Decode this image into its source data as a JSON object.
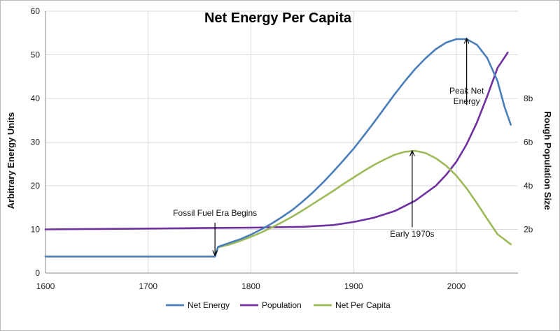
{
  "colors": {
    "net_energy": "#4a7ebb",
    "population": "#7030a0",
    "net_per_capita": "#9bbb59",
    "grid": "#d9d9d9",
    "axis": "#888888"
  },
  "chart_data": {
    "type": "line",
    "title": "Net Energy Per Capita",
    "xlabel": "",
    "ylabel": "Arbitrary Energy Units",
    "y2label": "Rough Population Size",
    "xlim": [
      1600,
      2060
    ],
    "ylim": [
      0,
      60
    ],
    "grid": true,
    "legend_position": "bottom",
    "x_ticks": [
      1600,
      1700,
      1800,
      1900,
      2000
    ],
    "y_ticks": [
      0,
      10,
      20,
      30,
      40,
      50,
      60
    ],
    "y2_ticks": [
      {
        "value": 10,
        "label": "2b"
      },
      {
        "value": 20,
        "label": "4b"
      },
      {
        "value": 30,
        "label": "6b"
      },
      {
        "value": 40,
        "label": "8b"
      }
    ],
    "series": [
      {
        "name": "Net Energy",
        "color": "#4a7ebb",
        "points": [
          [
            1600,
            3.8
          ],
          [
            1650,
            3.8
          ],
          [
            1700,
            3.8
          ],
          [
            1765,
            3.8
          ],
          [
            1768,
            6.0
          ],
          [
            1780,
            7.0
          ],
          [
            1790,
            7.8
          ],
          [
            1800,
            8.8
          ],
          [
            1810,
            10.0
          ],
          [
            1820,
            11.3
          ],
          [
            1830,
            12.8
          ],
          [
            1840,
            14.4
          ],
          [
            1850,
            16.3
          ],
          [
            1860,
            18.4
          ],
          [
            1870,
            20.7
          ],
          [
            1880,
            23.2
          ],
          [
            1890,
            25.8
          ],
          [
            1900,
            28.5
          ],
          [
            1910,
            31.5
          ],
          [
            1920,
            34.6
          ],
          [
            1930,
            37.8
          ],
          [
            1940,
            41.0
          ],
          [
            1950,
            44.0
          ],
          [
            1960,
            46.8
          ],
          [
            1970,
            49.2
          ],
          [
            1980,
            51.3
          ],
          [
            1990,
            52.8
          ],
          [
            2000,
            53.6
          ],
          [
            2010,
            53.6
          ],
          [
            2020,
            52.3
          ],
          [
            2030,
            49.3
          ],
          [
            2040,
            44.0
          ],
          [
            2047,
            38.0
          ],
          [
            2053,
            34.0
          ]
        ]
      },
      {
        "name": "Population",
        "color": "#7030a0",
        "points": [
          [
            1600,
            10.0
          ],
          [
            1650,
            10.1
          ],
          [
            1700,
            10.2
          ],
          [
            1750,
            10.3
          ],
          [
            1800,
            10.4
          ],
          [
            1850,
            10.6
          ],
          [
            1880,
            11.0
          ],
          [
            1900,
            11.7
          ],
          [
            1920,
            12.7
          ],
          [
            1940,
            14.2
          ],
          [
            1960,
            16.6
          ],
          [
            1980,
            20.0
          ],
          [
            1990,
            22.5
          ],
          [
            2000,
            25.5
          ],
          [
            2010,
            29.5
          ],
          [
            2020,
            34.5
          ],
          [
            2030,
            40.5
          ],
          [
            2040,
            47.0
          ],
          [
            2050,
            50.5
          ]
        ]
      },
      {
        "name": "Net Per Capita",
        "color": "#9bbb59",
        "points": [
          [
            1600,
            3.8
          ],
          [
            1650,
            3.8
          ],
          [
            1700,
            3.8
          ],
          [
            1765,
            3.8
          ],
          [
            1768,
            5.9
          ],
          [
            1780,
            6.6
          ],
          [
            1790,
            7.4
          ],
          [
            1800,
            8.3
          ],
          [
            1810,
            9.3
          ],
          [
            1820,
            10.4
          ],
          [
            1830,
            11.6
          ],
          [
            1840,
            12.9
          ],
          [
            1850,
            14.3
          ],
          [
            1860,
            15.8
          ],
          [
            1870,
            17.3
          ],
          [
            1880,
            18.8
          ],
          [
            1890,
            20.4
          ],
          [
            1900,
            21.9
          ],
          [
            1910,
            23.4
          ],
          [
            1920,
            24.8
          ],
          [
            1930,
            26.0
          ],
          [
            1940,
            27.1
          ],
          [
            1950,
            27.8
          ],
          [
            1960,
            28.0
          ],
          [
            1970,
            27.5
          ],
          [
            1980,
            26.3
          ],
          [
            1990,
            24.6
          ],
          [
            2000,
            22.3
          ],
          [
            2010,
            19.4
          ],
          [
            2020,
            16.0
          ],
          [
            2030,
            12.4
          ],
          [
            2040,
            8.9
          ],
          [
            2053,
            6.6
          ]
        ]
      }
    ],
    "annotations": [
      {
        "name": "fossil-fuel-annotation",
        "lines": [
          "Fossil Fuel Era Begins"
        ],
        "from": [
          1765,
          11.5
        ],
        "to": [
          1765,
          4.0
        ],
        "text_at": [
          1765,
          13.8
        ]
      },
      {
        "name": "early-1970s-annotation",
        "lines": [
          "Early 1970s"
        ],
        "from": [
          1957,
          10.5
        ],
        "to": [
          1957,
          28.0
        ],
        "text_at": [
          1957,
          9.0
        ]
      },
      {
        "name": "peak-net-energy-annotation",
        "lines": [
          "Peak Net",
          "Energy"
        ],
        "from": [
          2010,
          38.5
        ],
        "to": [
          2010,
          53.8
        ],
        "text_at": [
          2010,
          41.8
        ]
      }
    ]
  }
}
